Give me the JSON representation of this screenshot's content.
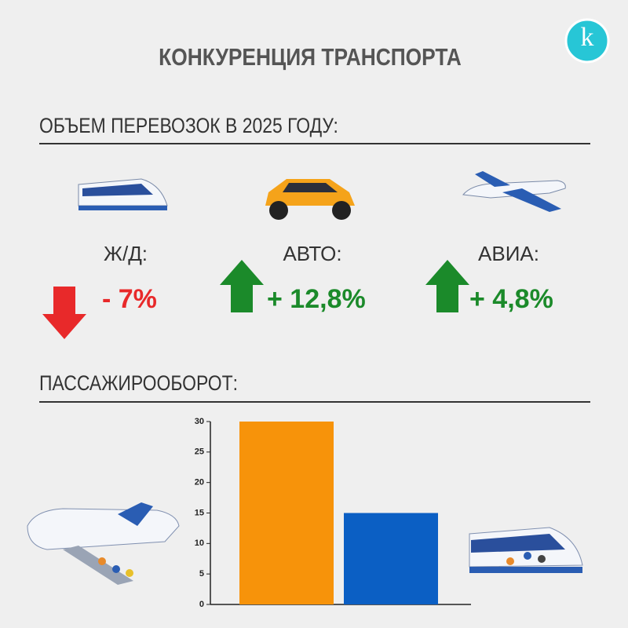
{
  "header": {
    "title": "КОНКУРЕНЦИЯ ТРАНСПОРТА",
    "logo": "k"
  },
  "volume": {
    "heading": "ОБЪЕМ ПЕРЕВОЗОК В 2025 ГОДУ:",
    "items": [
      {
        "label": "Ж/Д:",
        "change": "- 7%",
        "direction": "down",
        "color": "#e8292a"
      },
      {
        "label": "АВТО:",
        "change": "+ 12,8%",
        "direction": "up",
        "color": "#1b8a2a"
      },
      {
        "label": "АВИА:",
        "change": "+ 4,8%",
        "direction": "up",
        "color": "#1b8a2a"
      }
    ]
  },
  "turnover": {
    "heading": "ПАССАЖИРООБОРОТ:"
  },
  "chart_data": {
    "type": "bar",
    "categories": [
      null,
      null
    ],
    "values": [
      30,
      15
    ],
    "colors": [
      "#f7930a",
      "#0b5fc4"
    ],
    "ylim": [
      0,
      30
    ],
    "yticks": [
      0,
      5,
      10,
      15,
      20,
      25,
      30
    ],
    "grid": false
  }
}
